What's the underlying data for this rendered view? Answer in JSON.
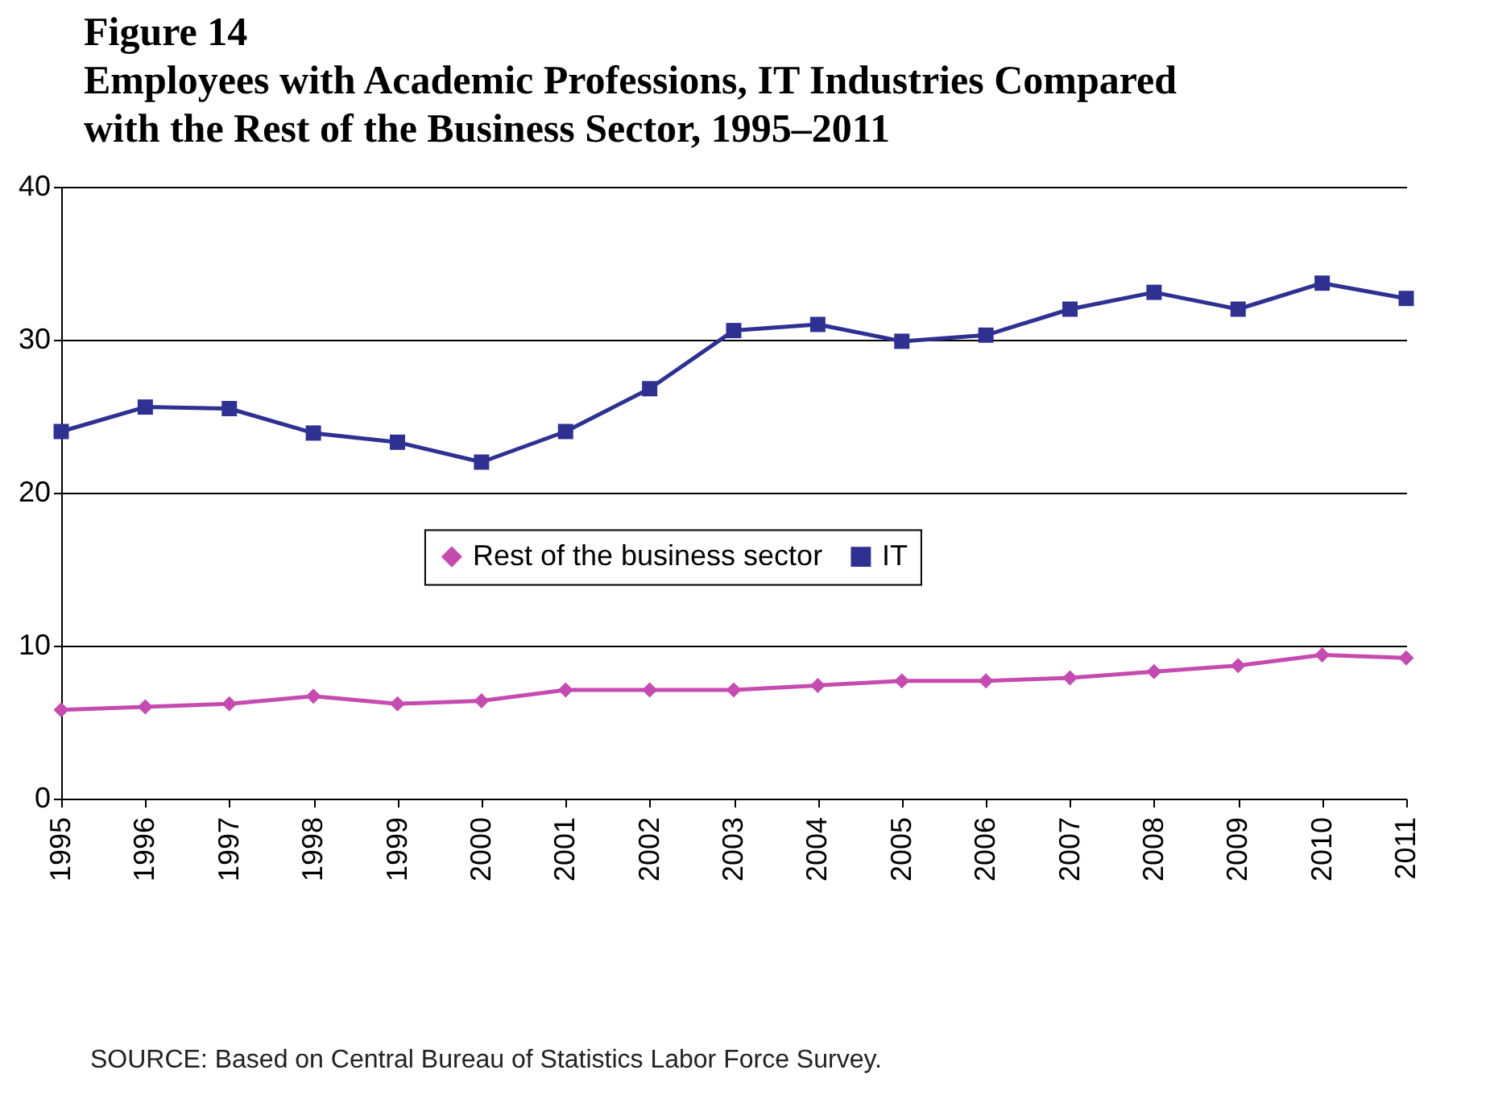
{
  "chart_data": {
    "type": "line",
    "title": "Figure 14\nEmployees with Academic Professions, IT Industries Compared\nwith the Rest of the Business Sector, 1995–2011",
    "categories": [
      "1995",
      "1996",
      "1997",
      "1998",
      "1999",
      "2000",
      "2001",
      "2002",
      "2003",
      "2004",
      "2005",
      "2006",
      "2007",
      "2008",
      "2009",
      "2010",
      "2011"
    ],
    "series": [
      {
        "name": "Rest of the business sector",
        "color": "#c54bb0",
        "marker": "diamond",
        "values": [
          5.8,
          6.0,
          6.2,
          6.7,
          6.2,
          6.4,
          7.1,
          7.1,
          7.1,
          7.4,
          7.7,
          7.7,
          7.9,
          8.3,
          8.7,
          9.4,
          9.2
        ]
      },
      {
        "name": "IT",
        "color": "#2e3192",
        "marker": "square",
        "values": [
          24.0,
          25.6,
          25.5,
          23.9,
          23.3,
          22.0,
          24.0,
          26.8,
          30.6,
          31.0,
          29.9,
          30.3,
          32.0,
          33.1,
          32.0,
          33.7,
          32.7
        ]
      }
    ],
    "ylim": [
      0,
      40
    ],
    "yticks": [
      0,
      10,
      20,
      30,
      40
    ],
    "grid": "y",
    "legend": "center",
    "line_style": "solid",
    "annotations": [
      "SOURCE:  Based on Central Bureau of Statistics Labor Force Survey."
    ]
  }
}
